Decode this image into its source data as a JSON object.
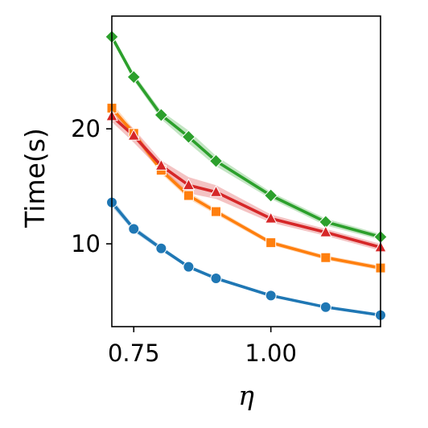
{
  "chart_data": {
    "type": "line",
    "title": "",
    "xlabel": "η",
    "ylabel": "Time(s)",
    "xlim": [
      0.71,
      1.2
    ],
    "ylim": [
      2.8,
      29.8
    ],
    "xticks": [
      {
        "value": 0.75,
        "label": "0.75"
      },
      {
        "value": 1.0,
        "label": "1.00"
      }
    ],
    "yticks": [
      {
        "value": 10,
        "label": "10"
      },
      {
        "value": 20,
        "label": "20"
      }
    ],
    "x": [
      0.71,
      0.75,
      0.8,
      0.85,
      0.9,
      1.0,
      1.1,
      1.2
    ],
    "series": [
      {
        "color": "#1f77b4",
        "marker": "circle",
        "values": [
          13.6,
          11.3,
          9.6,
          8.0,
          7.0,
          5.5,
          4.5,
          3.8
        ],
        "band": [
          0.35,
          0.25,
          0.2,
          0.15,
          0.15,
          0.1,
          0.1,
          0.1
        ]
      },
      {
        "color": "#ff7f0e",
        "marker": "square",
        "values": [
          21.8,
          19.6,
          16.4,
          14.2,
          12.8,
          10.1,
          8.8,
          7.9
        ],
        "band": [
          0.45,
          0.35,
          0.3,
          0.3,
          0.25,
          0.2,
          0.2,
          0.2
        ]
      },
      {
        "color": "#2ca02c",
        "marker": "diamond",
        "values": [
          28.0,
          24.5,
          21.2,
          19.3,
          17.2,
          14.2,
          11.9,
          10.6
        ],
        "band": [
          0.3,
          0.3,
          0.35,
          0.55,
          0.45,
          0.3,
          0.3,
          0.25
        ]
      },
      {
        "color": "#d62728",
        "marker": "triangle",
        "values": [
          21.1,
          19.4,
          16.8,
          15.1,
          14.5,
          12.2,
          11.0,
          9.7
        ],
        "band": [
          0.5,
          0.6,
          0.45,
          0.7,
          0.6,
          0.35,
          0.3,
          0.3
        ]
      }
    ]
  }
}
